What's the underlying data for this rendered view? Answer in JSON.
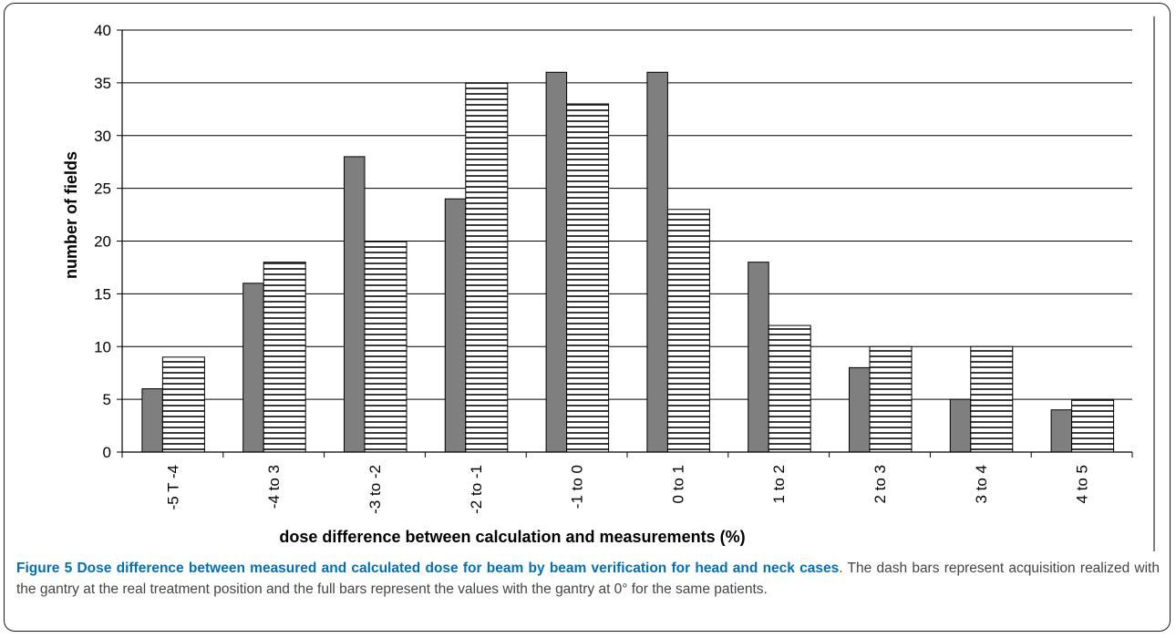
{
  "caption": {
    "lead": "Figure 5 Dose difference between measured and calculated dose for beam by beam verification for head and neck cases",
    "body": ". The dash bars represent acquisition realized with the gantry at the real treatment position and the full bars represent the values with the gantry at 0° for the same patients."
  },
  "chart_data": {
    "type": "bar",
    "title": "",
    "xlabel": "dose difference between calculation and measurements (%)",
    "ylabel": "number of fields",
    "ylim": [
      0,
      40
    ],
    "yticks": [
      0,
      5,
      10,
      15,
      20,
      25,
      30,
      35,
      40
    ],
    "grid": true,
    "legend": "none",
    "categories": [
      "-5 T -4",
      "-4 to 3",
      "-3 to -2",
      "-2 to -1",
      "-1 to 0",
      "0 to 1",
      "1 to 2",
      "2 to 3",
      "3 to 4",
      "4 to 5"
    ],
    "series": [
      {
        "style": "solid",
        "color": "#7f7f7f",
        "values": [
          6,
          16,
          28,
          24,
          36,
          36,
          18,
          8,
          5,
          4
        ]
      },
      {
        "style": "dashed",
        "color": "#ffffff",
        "values": [
          9,
          18,
          20,
          35,
          33,
          23,
          12,
          10,
          10,
          5
        ]
      }
    ]
  }
}
